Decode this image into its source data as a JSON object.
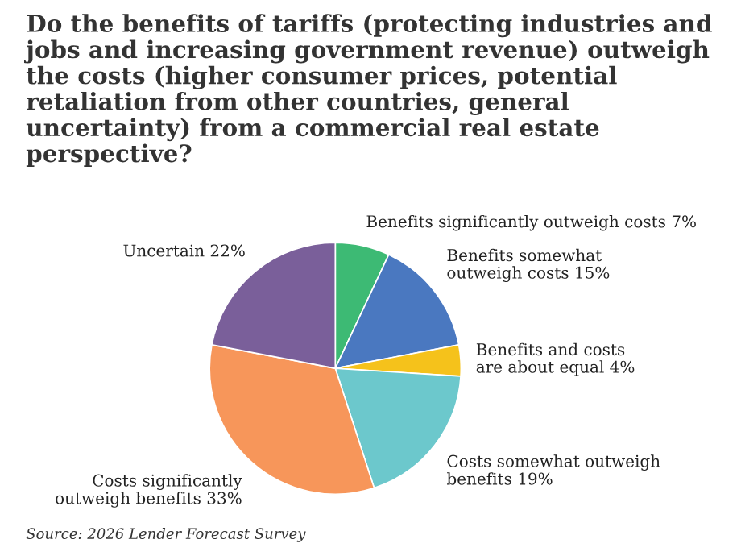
{
  "chart_data": {
    "type": "pie",
    "title": "Do the benefits of tariffs (protecting industries and jobs and increasing government revenue) outweigh the costs (higher consumer prices, potential retaliation from other countries, general uncertainty) from a commercial real estate perspective?",
    "categories": [
      "Benefits significantly outweigh costs",
      "Benefits somewhat\noutweigh costs",
      "Benefits and costs\nare about equal",
      "Costs somewhat outweigh\nbenefits",
      "Costs significantly\noutweigh benefits",
      "Uncertain"
    ],
    "values": [
      7,
      15,
      4,
      19,
      33,
      22
    ],
    "value_labels": [
      "7%",
      "15%",
      "4%",
      "19%",
      "33%",
      "22%"
    ],
    "colors": [
      "#3dba74",
      "#4a78c0",
      "#f5c21b",
      "#6cc8cc",
      "#f7965a",
      "#7a5f9a"
    ],
    "annotations": [
      "Source: 2026 Lender Forecast Survey"
    ]
  }
}
